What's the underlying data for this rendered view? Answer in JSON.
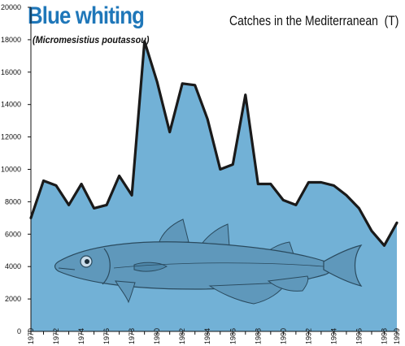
{
  "chart_data": {
    "type": "area",
    "title": "Blue whiting",
    "subtitle": "(Micromesistius poutassou)",
    "right_title": "Catches in the Mediterranean",
    "unit": "(T)",
    "xlabel": "",
    "ylabel": "",
    "x": [
      1970,
      1971,
      1972,
      1973,
      1974,
      1975,
      1976,
      1977,
      1978,
      1979,
      1980,
      1981,
      1982,
      1983,
      1984,
      1985,
      1986,
      1987,
      1988,
      1989,
      1990,
      1991,
      1992,
      1993,
      1994,
      1995,
      1996,
      1997,
      1998,
      1999
    ],
    "values": [
      7000,
      9300,
      9000,
      7800,
      9100,
      7600,
      7800,
      9600,
      8400,
      17900,
      15400,
      12300,
      15300,
      15200,
      13100,
      10000,
      10300,
      14600,
      9100,
      9100,
      8100,
      7800,
      9200,
      9200,
      9000,
      8400,
      7600,
      6200,
      5300,
      6700
    ],
    "ylim": [
      0,
      20000
    ],
    "xlim": [
      1970,
      1999
    ],
    "yticks": [
      0,
      2000,
      4000,
      6000,
      8000,
      10000,
      12000,
      14000,
      16000,
      18000,
      20000
    ],
    "xticks": [
      1970,
      1972,
      1974,
      1976,
      1978,
      1980,
      1982,
      1984,
      1986,
      1988,
      1990,
      1992,
      1994,
      1996,
      1998,
      1999
    ],
    "grid": false,
    "legend": "none",
    "fill_color": "#72b1d6",
    "line_color": "#1a1a1a",
    "title_color": "#1f77b9",
    "illustration": "fish-illustration"
  }
}
